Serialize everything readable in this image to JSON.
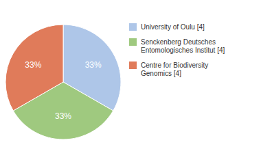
{
  "chart_data": {
    "type": "pie",
    "categories": [
      "University of Oulu [4]",
      "Senckenberg Deutsches\nEntomologisches Institut [4]",
      "Centre for Biodiversity\nGenomics [4]"
    ],
    "values": [
      33.33,
      33.33,
      33.34
    ],
    "value_labels": [
      "33%",
      "33%",
      "33%"
    ],
    "colors": [
      "#aec6e8",
      "#9fc97f",
      "#e07b5a"
    ],
    "data_labels": true,
    "legend": "right"
  }
}
